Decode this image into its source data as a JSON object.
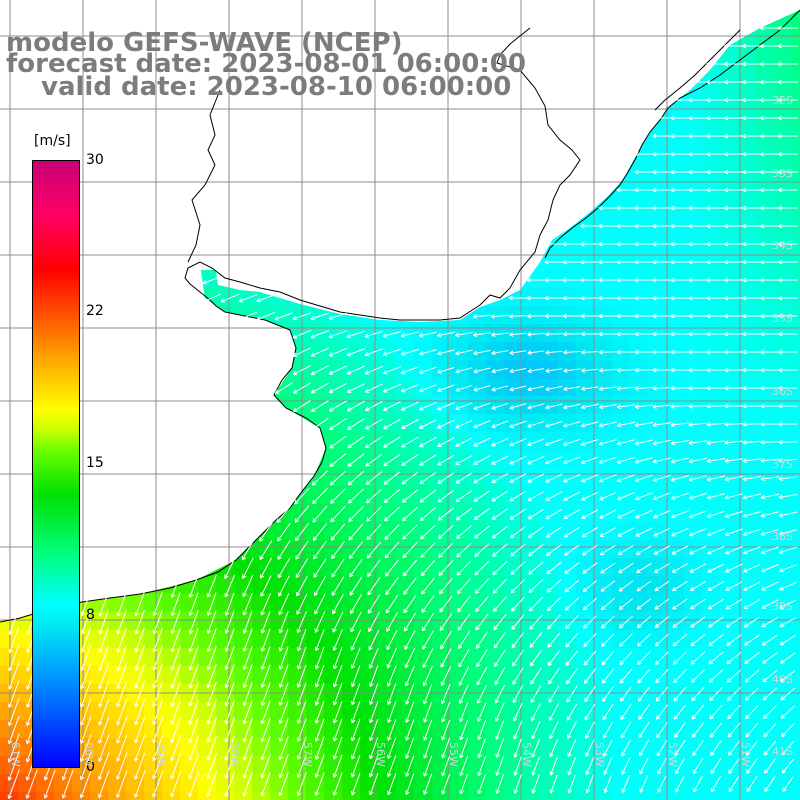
{
  "title": {
    "line1": "modelo GEFS-WAVE (NCEP)",
    "line2": "forecast date: 2023-08-01 06:00:00",
    "line3": "valid date: 2023-08-10 06:00:00"
  },
  "colorbar": {
    "unit": "[m/s]",
    "ticks": [
      "30",
      "22",
      "15",
      "8",
      "0"
    ],
    "min": 0,
    "max": 30
  },
  "map": {
    "lat_labels": [
      "32S",
      "33S",
      "34S",
      "35S",
      "36S",
      "37S",
      "38S",
      "39S",
      "40S",
      "41S"
    ],
    "lon_labels": [
      "61W",
      "60W",
      "59W",
      "58W",
      "57W",
      "56W",
      "55W",
      "54W",
      "53W",
      "52W",
      "51W"
    ],
    "field": "wind speed",
    "wind_direction": "from east / northeast, arrows point west and southwest",
    "colors": {
      "land": "#ffffff",
      "grid": "#8c8c8c",
      "coast": "#000000",
      "arrows": "#ffffff",
      "title": "#7c7c7c"
    }
  }
}
